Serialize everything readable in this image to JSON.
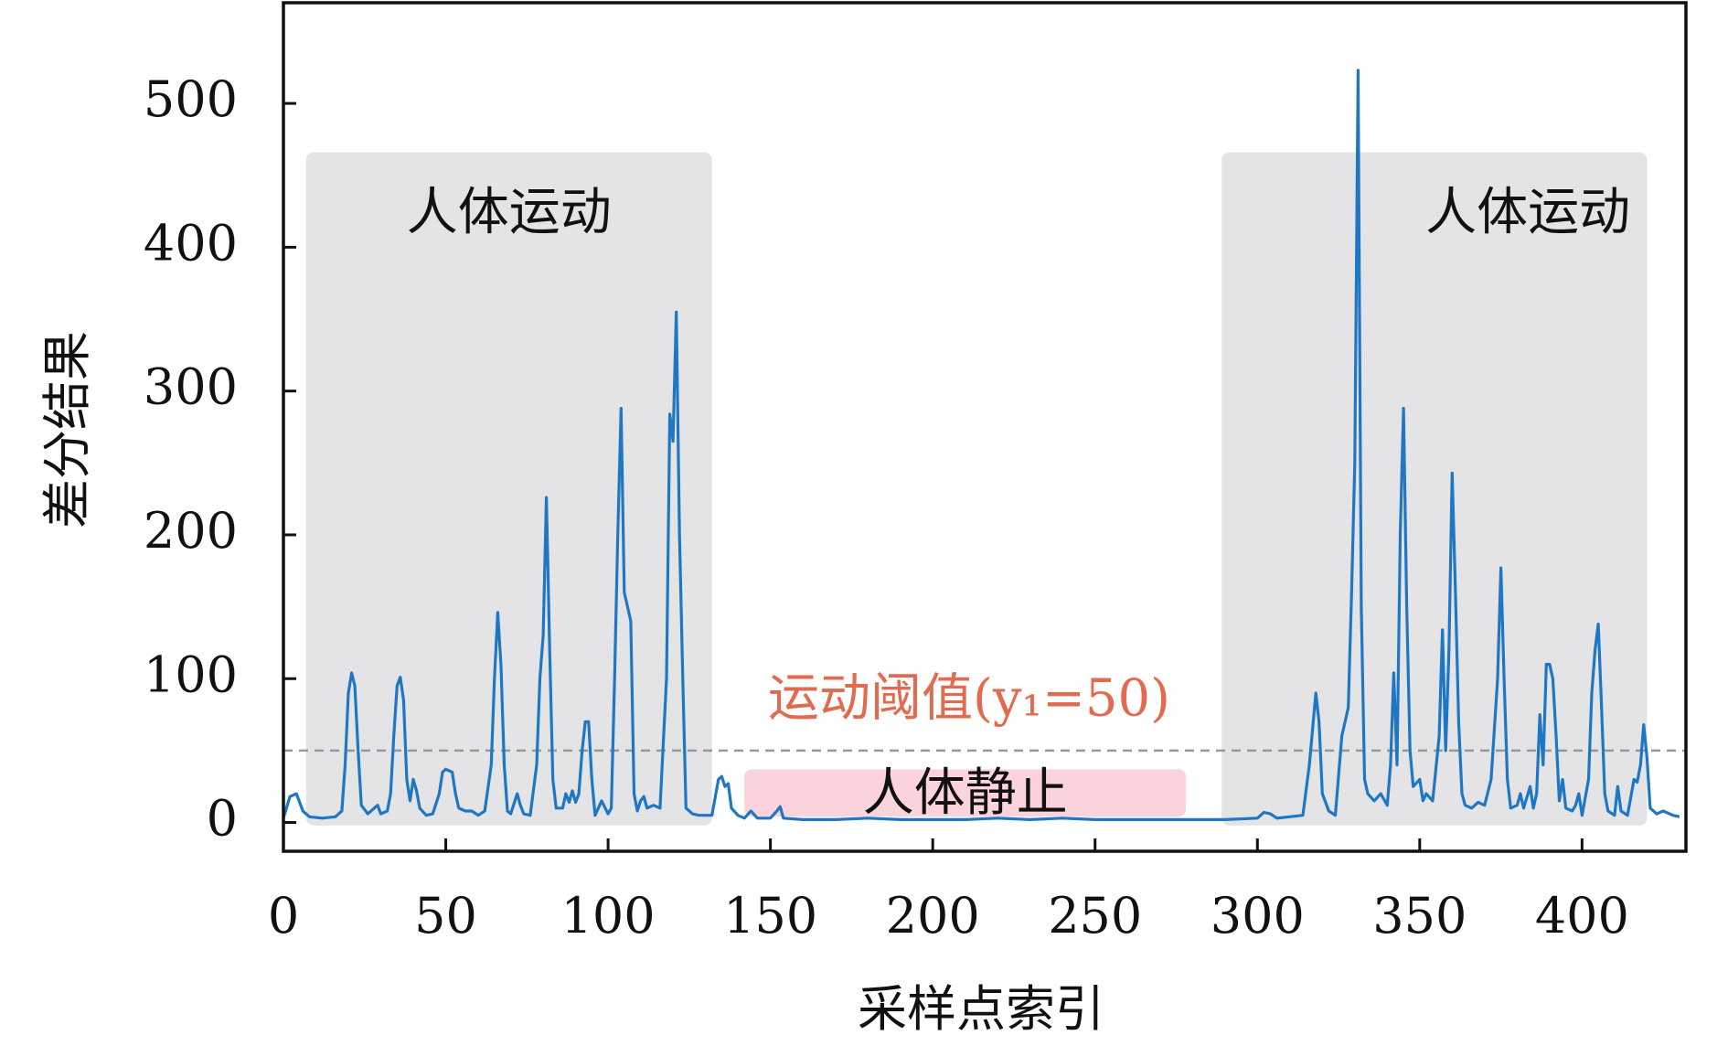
{
  "chart_data": {
    "type": "line",
    "xlabel": "采样点索引",
    "ylabel": "差分结果",
    "color": "#1f77c4",
    "xlim": [
      0,
      432
    ],
    "ylim": [
      -20,
      570
    ],
    "xticks": [
      0,
      50,
      100,
      150,
      200,
      250,
      300,
      350,
      400
    ],
    "yticks": [
      0,
      100,
      200,
      300,
      400,
      500
    ],
    "regions": [
      {
        "label": "人体运动",
        "color": "#e4e4e7",
        "xlim": [
          7,
          132
        ],
        "ylim": [
          -2,
          466
        ]
      },
      {
        "label": "人体运动",
        "color": "#e4e4e7",
        "xlim": [
          289,
          420
        ],
        "ylim": [
          -2,
          466
        ]
      },
      {
        "label": "人体静止",
        "color": "#fbd3dc",
        "xlim": [
          142,
          278
        ],
        "ylim": [
          4,
          37
        ]
      }
    ],
    "threshold": {
      "value": 50,
      "label": "运动阈值(y₁=50)",
      "color": "#999999",
      "label_color": "#e26a4f"
    },
    "x": [
      0,
      2,
      4,
      6,
      8,
      12,
      16,
      18,
      19,
      20,
      21,
      22,
      23,
      24,
      26,
      28,
      29,
      30,
      32,
      33,
      34,
      35,
      36,
      37,
      38,
      39,
      40,
      41,
      42,
      44,
      46,
      48,
      49,
      50,
      52,
      53,
      54,
      56,
      58,
      60,
      62,
      64,
      65,
      66,
      67,
      68,
      69,
      70,
      72,
      73,
      74,
      76,
      78,
      79,
      80,
      81,
      82,
      83,
      84,
      86,
      87,
      88,
      89,
      90,
      91,
      92,
      93,
      94,
      95,
      96,
      98,
      100,
      101,
      102,
      103,
      104,
      105,
      106,
      107,
      108,
      109,
      110,
      111,
      112,
      114,
      116,
      118,
      119,
      120,
      121,
      122,
      123,
      124,
      126,
      128,
      130,
      132,
      134,
      135,
      136,
      137,
      138,
      140,
      142,
      144,
      146,
      150,
      152,
      153,
      154,
      160,
      170,
      180,
      190,
      200,
      210,
      220,
      230,
      240,
      250,
      260,
      270,
      280,
      290,
      300,
      302,
      304,
      306,
      310,
      314,
      316,
      318,
      319,
      320,
      322,
      324,
      326,
      328,
      329,
      330,
      331,
      332,
      333,
      334,
      336,
      338,
      340,
      341,
      342,
      343,
      344,
      345,
      346,
      347,
      348,
      350,
      351,
      352,
      354,
      356,
      357,
      358,
      359,
      360,
      361,
      362,
      363,
      364,
      366,
      368,
      370,
      372,
      374,
      375,
      376,
      377,
      378,
      380,
      381,
      382,
      384,
      385,
      386,
      387,
      388,
      389,
      390,
      391,
      392,
      393,
      394,
      395,
      397,
      398,
      399,
      400,
      402,
      403,
      404,
      405,
      406,
      407,
      408,
      410,
      411,
      412,
      414,
      416,
      417,
      418,
      419,
      420,
      421,
      423,
      425,
      428,
      430
    ],
    "values": [
      3,
      18,
      20,
      8,
      4,
      3,
      4,
      8,
      40,
      90,
      104,
      95,
      50,
      12,
      6,
      10,
      12,
      6,
      8,
      20,
      60,
      95,
      101,
      85,
      30,
      15,
      30,
      22,
      10,
      5,
      6,
      20,
      35,
      37,
      35,
      20,
      10,
      8,
      8,
      5,
      8,
      40,
      100,
      146,
      110,
      40,
      8,
      6,
      20,
      12,
      6,
      5,
      40,
      100,
      130,
      226,
      120,
      30,
      10,
      10,
      20,
      14,
      22,
      14,
      20,
      50,
      70,
      70,
      30,
      5,
      15,
      6,
      10,
      100,
      200,
      288,
      160,
      150,
      140,
      20,
      8,
      15,
      18,
      10,
      12,
      10,
      100,
      284,
      265,
      355,
      200,
      100,
      10,
      6,
      5,
      5,
      5,
      30,
      32,
      25,
      27,
      10,
      5,
      3,
      8,
      3,
      3,
      8,
      11,
      3,
      2,
      2,
      3,
      2,
      2,
      2,
      3,
      2,
      3,
      2,
      2,
      2,
      2,
      2,
      3,
      7,
      6,
      3,
      4,
      5,
      40,
      90,
      70,
      20,
      8,
      5,
      60,
      80,
      160,
      250,
      523,
      150,
      30,
      20,
      15,
      20,
      12,
      40,
      104,
      40,
      200,
      288,
      150,
      50,
      25,
      30,
      15,
      20,
      15,
      60,
      134,
      50,
      120,
      243,
      160,
      70,
      20,
      12,
      10,
      14,
      12,
      30,
      100,
      177,
      100,
      30,
      10,
      12,
      20,
      10,
      25,
      10,
      20,
      75,
      40,
      110,
      110,
      100,
      60,
      15,
      30,
      10,
      8,
      12,
      20,
      5,
      30,
      90,
      120,
      138,
      80,
      20,
      8,
      5,
      25,
      8,
      5,
      30,
      28,
      40,
      68,
      45,
      10,
      6,
      8,
      5,
      4
    ]
  }
}
